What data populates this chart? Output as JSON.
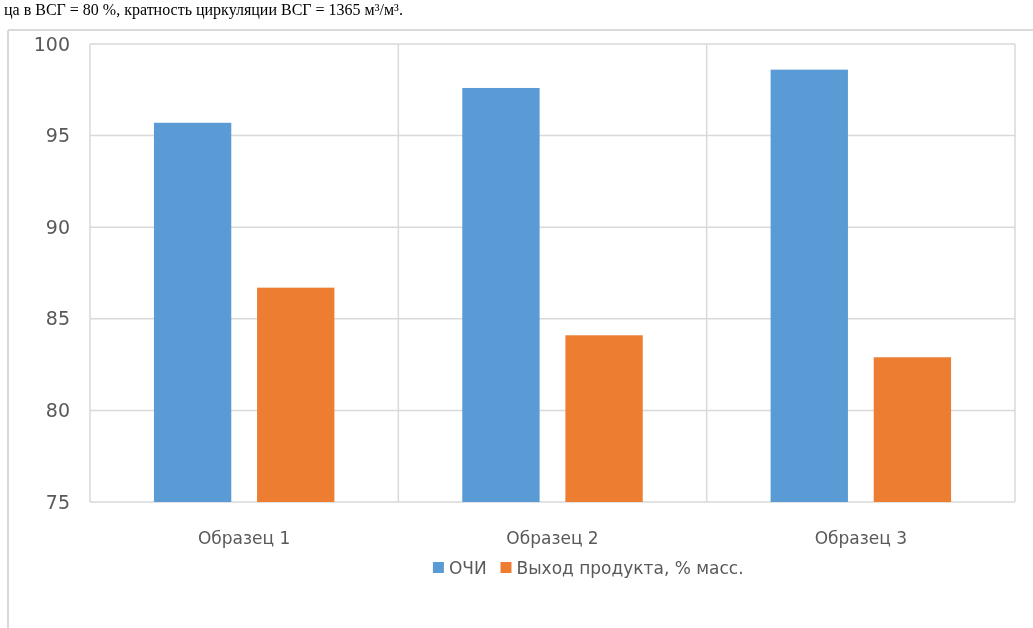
{
  "chart_data": {
    "type": "bar",
    "categories": [
      "Образец 1",
      "Образец 2",
      "Образец 3"
    ],
    "series": [
      {
        "name": "ОЧИ",
        "color": "#5b9bd5",
        "values": [
          95.7,
          97.6,
          98.6
        ]
      },
      {
        "name": "Выход продукта, % масс.",
        "color": "#ed7d31",
        "values": [
          86.7,
          84.1,
          82.9
        ]
      }
    ],
    "ylim": [
      75,
      100
    ],
    "yticks": [
      75,
      80,
      85,
      90,
      95,
      100
    ],
    "grid": true,
    "legend": "bottom",
    "annotations": [
      "ца в ВСГ = 80 %, кратность циркуляции ВСГ = 1365 м³/м³."
    ]
  }
}
